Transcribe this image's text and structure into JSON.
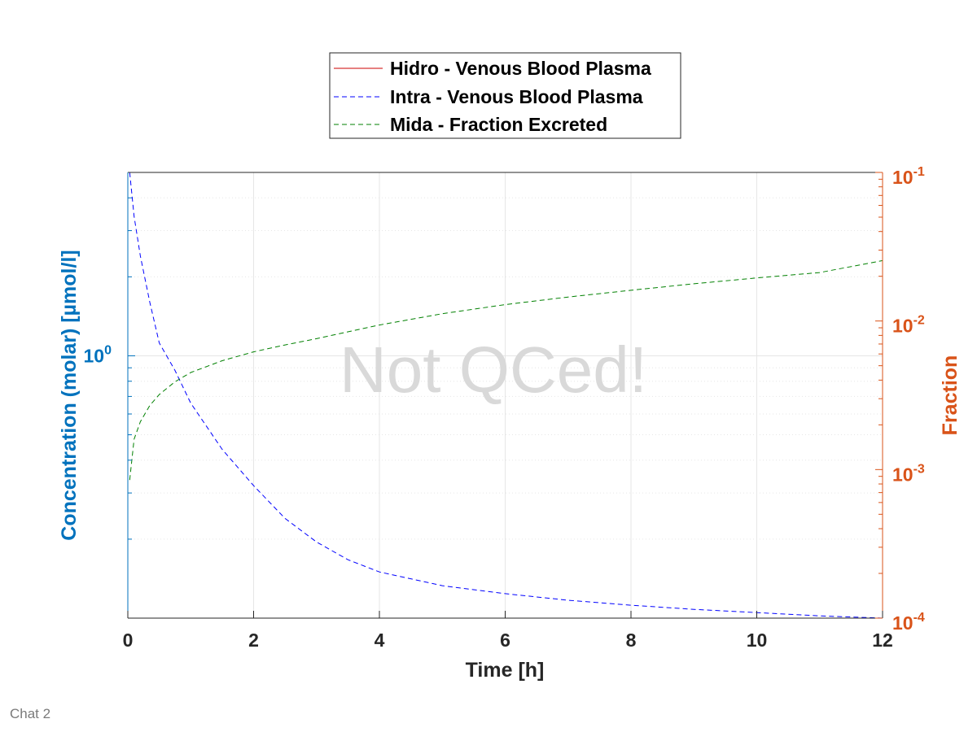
{
  "footer": {
    "label": "Chat 2"
  },
  "watermark": {
    "text": "Not QCed!"
  },
  "colors": {
    "left_axis": "#0072bd",
    "right_axis": "#d95319",
    "grid": "#e6e6e6",
    "axes": "#262626"
  },
  "chart_data": {
    "type": "line",
    "title": "",
    "xlabel": "Time [h]",
    "ylabel_left": "Concentration (molar) [µmol/l]",
    "ylabel_right": "Fraction",
    "xlim": [
      0,
      12
    ],
    "ylim_left": [
      0.1,
      5
    ],
    "ylim_right": [
      0.0001,
      0.1
    ],
    "yscale_left": "log",
    "yscale_right": "log",
    "grid": true,
    "legend_position": "top-center",
    "x_ticks": [
      "0",
      "2",
      "4",
      "6",
      "8",
      "10",
      "12"
    ],
    "y_left_ticks": [
      {
        "base": "10",
        "exp": "0"
      }
    ],
    "y_right_ticks": [
      {
        "base": "10",
        "exp": "-1"
      },
      {
        "base": "10",
        "exp": "-2"
      },
      {
        "base": "10",
        "exp": "-3"
      },
      {
        "base": "10",
        "exp": "-4"
      }
    ],
    "series": [
      {
        "name": "Hidro - Venous Blood Plasma",
        "axis": "left",
        "color": "#cc0000",
        "style": "solid",
        "x": [],
        "y": []
      },
      {
        "name": "Intra - Venous Blood Plasma",
        "axis": "left",
        "color": "#0000ff",
        "style": "dashed",
        "x": [
          0.03,
          0.1,
          0.2,
          0.35,
          0.5,
          0.75,
          1,
          1.5,
          2,
          2.5,
          3,
          3.5,
          4,
          5,
          6,
          7,
          8,
          9,
          10,
          11,
          12
        ],
        "y": [
          5,
          3.4,
          2.4,
          1.6,
          1.12,
          0.88,
          0.66,
          0.44,
          0.32,
          0.24,
          0.195,
          0.167,
          0.15,
          0.133,
          0.124,
          0.117,
          0.112,
          0.108,
          0.105,
          0.102,
          0.1
        ]
      },
      {
        "name": "Mida - Fraction Excreted",
        "axis": "right",
        "color": "#008000",
        "style": "dashed",
        "x": [
          0.03,
          0.1,
          0.2,
          0.35,
          0.5,
          0.75,
          1,
          1.5,
          2,
          2.5,
          3,
          4,
          5,
          6,
          7,
          8,
          9,
          10,
          11,
          12
        ],
        "y": [
          0.00085,
          0.0016,
          0.0021,
          0.0027,
          0.0032,
          0.0039,
          0.0045,
          0.0054,
          0.0062,
          0.0069,
          0.0076,
          0.0094,
          0.0112,
          0.0129,
          0.0145,
          0.0161,
          0.0178,
          0.0195,
          0.0212,
          0.0255
        ]
      }
    ]
  }
}
